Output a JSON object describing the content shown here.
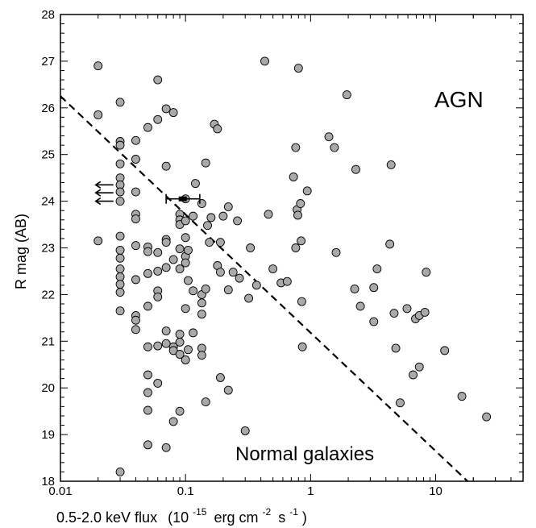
{
  "chart_data": {
    "type": "scatter",
    "title": "",
    "xlabel": "0.5-2.0 keV flux",
    "xlabel_units": "(10",
    "xlabel_units_sup": "-15",
    "xlabel_units_rest": "erg cm",
    "xlabel_units_sup2": "-2",
    "xlabel_units_rest2": "s",
    "xlabel_units_sup3": "-1",
    "xlabel_units_end": ")",
    "ylabel": "R mag  (AB)",
    "xscale": "log",
    "xlim": [
      0.01,
      50
    ],
    "ylim": [
      18,
      28
    ],
    "grid": false,
    "x_tick_labels": [
      "0.01",
      "0.1",
      "1",
      "10"
    ],
    "x_tick_values": [
      0.01,
      0.1,
      1,
      10
    ],
    "y_tick_labels": [
      "18",
      "19",
      "20",
      "21",
      "22",
      "23",
      "24",
      "25",
      "26",
      "27",
      "28"
    ],
    "y_tick_values": [
      18,
      19,
      20,
      21,
      22,
      23,
      24,
      25,
      26,
      27,
      28
    ],
    "annotations": {
      "upper_right": "AGN",
      "lower": "Normal galaxies"
    },
    "marker_color": "#a9a9a9",
    "marker_edge": "#000000",
    "dividing_line": {
      "style": "dashed",
      "points": [
        [
          0.01,
          26.25
        ],
        [
          18,
          18
        ]
      ]
    },
    "upper_limits": [
      {
        "x": 0.02,
        "y": 24.35
      },
      {
        "x": 0.02,
        "y": 24.18
      },
      {
        "x": 0.02,
        "y": 24.0
      }
    ],
    "errorbar_point": {
      "x": 0.095,
      "y": 24.05,
      "xlow": 0.07,
      "xhigh": 0.13
    },
    "points": [
      {
        "x": 0.02,
        "y": 26.9
      },
      {
        "x": 0.02,
        "y": 25.85
      },
      {
        "x": 0.02,
        "y": 23.15
      },
      {
        "x": 0.03,
        "y": 26.12
      },
      {
        "x": 0.03,
        "y": 25.28
      },
      {
        "x": 0.03,
        "y": 25.2
      },
      {
        "x": 0.03,
        "y": 24.8
      },
      {
        "x": 0.03,
        "y": 24.5
      },
      {
        "x": 0.03,
        "y": 24.35
      },
      {
        "x": 0.03,
        "y": 24.2
      },
      {
        "x": 0.03,
        "y": 24.0
      },
      {
        "x": 0.03,
        "y": 23.25
      },
      {
        "x": 0.03,
        "y": 22.95
      },
      {
        "x": 0.03,
        "y": 22.78
      },
      {
        "x": 0.03,
        "y": 22.55
      },
      {
        "x": 0.03,
        "y": 22.38
      },
      {
        "x": 0.03,
        "y": 22.22
      },
      {
        "x": 0.03,
        "y": 22.05
      },
      {
        "x": 0.03,
        "y": 21.65
      },
      {
        "x": 0.03,
        "y": 18.2
      },
      {
        "x": 0.04,
        "y": 25.3
      },
      {
        "x": 0.04,
        "y": 24.9
      },
      {
        "x": 0.04,
        "y": 24.2
      },
      {
        "x": 0.04,
        "y": 23.72
      },
      {
        "x": 0.04,
        "y": 23.62
      },
      {
        "x": 0.04,
        "y": 23.05
      },
      {
        "x": 0.04,
        "y": 22.32
      },
      {
        "x": 0.04,
        "y": 21.55
      },
      {
        "x": 0.04,
        "y": 21.45
      },
      {
        "x": 0.04,
        "y": 21.25
      },
      {
        "x": 0.05,
        "y": 25.58
      },
      {
        "x": 0.05,
        "y": 23.02
      },
      {
        "x": 0.05,
        "y": 22.92
      },
      {
        "x": 0.05,
        "y": 22.45
      },
      {
        "x": 0.05,
        "y": 21.75
      },
      {
        "x": 0.05,
        "y": 20.88
      },
      {
        "x": 0.05,
        "y": 20.28
      },
      {
        "x": 0.05,
        "y": 19.9
      },
      {
        "x": 0.05,
        "y": 19.52
      },
      {
        "x": 0.05,
        "y": 18.78
      },
      {
        "x": 0.06,
        "y": 26.6
      },
      {
        "x": 0.06,
        "y": 25.75
      },
      {
        "x": 0.06,
        "y": 22.9
      },
      {
        "x": 0.06,
        "y": 22.5
      },
      {
        "x": 0.06,
        "y": 22.08
      },
      {
        "x": 0.06,
        "y": 21.95
      },
      {
        "x": 0.06,
        "y": 20.9
      },
      {
        "x": 0.06,
        "y": 20.1
      },
      {
        "x": 0.07,
        "y": 25.98
      },
      {
        "x": 0.07,
        "y": 24.75
      },
      {
        "x": 0.07,
        "y": 23.18
      },
      {
        "x": 0.07,
        "y": 23.12
      },
      {
        "x": 0.07,
        "y": 22.58
      },
      {
        "x": 0.07,
        "y": 21.22
      },
      {
        "x": 0.07,
        "y": 20.95
      },
      {
        "x": 0.07,
        "y": 18.72
      },
      {
        "x": 0.08,
        "y": 25.9
      },
      {
        "x": 0.08,
        "y": 22.75
      },
      {
        "x": 0.08,
        "y": 20.88
      },
      {
        "x": 0.08,
        "y": 20.8
      },
      {
        "x": 0.08,
        "y": 19.28
      },
      {
        "x": 0.09,
        "y": 23.72
      },
      {
        "x": 0.09,
        "y": 23.6
      },
      {
        "x": 0.09,
        "y": 23.5
      },
      {
        "x": 0.09,
        "y": 22.98
      },
      {
        "x": 0.09,
        "y": 22.55
      },
      {
        "x": 0.09,
        "y": 21.15
      },
      {
        "x": 0.09,
        "y": 20.98
      },
      {
        "x": 0.09,
        "y": 20.72
      },
      {
        "x": 0.09,
        "y": 19.5
      },
      {
        "x": 0.1,
        "y": 24.05
      },
      {
        "x": 0.1,
        "y": 23.58
      },
      {
        "x": 0.1,
        "y": 23.22
      },
      {
        "x": 0.1,
        "y": 22.82
      },
      {
        "x": 0.1,
        "y": 22.68
      },
      {
        "x": 0.1,
        "y": 21.7
      },
      {
        "x": 0.1,
        "y": 20.6
      },
      {
        "x": 0.105,
        "y": 22.95
      },
      {
        "x": 0.105,
        "y": 22.3
      },
      {
        "x": 0.105,
        "y": 20.82
      },
      {
        "x": 0.115,
        "y": 23.68
      },
      {
        "x": 0.115,
        "y": 22.08
      },
      {
        "x": 0.115,
        "y": 21.18
      },
      {
        "x": 0.12,
        "y": 24.38
      },
      {
        "x": 0.135,
        "y": 23.95
      },
      {
        "x": 0.135,
        "y": 22.0
      },
      {
        "x": 0.135,
        "y": 21.82
      },
      {
        "x": 0.135,
        "y": 21.58
      },
      {
        "x": 0.135,
        "y": 20.85
      },
      {
        "x": 0.135,
        "y": 20.7
      },
      {
        "x": 0.145,
        "y": 24.82
      },
      {
        "x": 0.145,
        "y": 22.12
      },
      {
        "x": 0.145,
        "y": 19.7
      },
      {
        "x": 0.15,
        "y": 23.48
      },
      {
        "x": 0.155,
        "y": 23.12
      },
      {
        "x": 0.16,
        "y": 23.65
      },
      {
        "x": 0.17,
        "y": 25.65
      },
      {
        "x": 0.18,
        "y": 25.55
      },
      {
        "x": 0.18,
        "y": 22.62
      },
      {
        "x": 0.19,
        "y": 23.12
      },
      {
        "x": 0.19,
        "y": 22.48
      },
      {
        "x": 0.19,
        "y": 20.22
      },
      {
        "x": 0.2,
        "y": 23.68
      },
      {
        "x": 0.22,
        "y": 23.88
      },
      {
        "x": 0.22,
        "y": 22.1
      },
      {
        "x": 0.22,
        "y": 19.95
      },
      {
        "x": 0.24,
        "y": 22.48
      },
      {
        "x": 0.26,
        "y": 23.58
      },
      {
        "x": 0.27,
        "y": 22.35
      },
      {
        "x": 0.3,
        "y": 19.08
      },
      {
        "x": 0.32,
        "y": 21.92
      },
      {
        "x": 0.33,
        "y": 23.0
      },
      {
        "x": 0.37,
        "y": 22.2
      },
      {
        "x": 0.43,
        "y": 27.0
      },
      {
        "x": 0.46,
        "y": 23.72
      },
      {
        "x": 0.5,
        "y": 22.55
      },
      {
        "x": 0.58,
        "y": 22.25
      },
      {
        "x": 0.65,
        "y": 22.28
      },
      {
        "x": 0.73,
        "y": 24.52
      },
      {
        "x": 0.76,
        "y": 25.15
      },
      {
        "x": 0.76,
        "y": 23.0
      },
      {
        "x": 0.78,
        "y": 23.82
      },
      {
        "x": 0.79,
        "y": 23.7
      },
      {
        "x": 0.8,
        "y": 26.85
      },
      {
        "x": 0.83,
        "y": 23.95
      },
      {
        "x": 0.84,
        "y": 23.15
      },
      {
        "x": 0.85,
        "y": 21.85
      },
      {
        "x": 0.86,
        "y": 20.88
      },
      {
        "x": 0.94,
        "y": 24.22
      },
      {
        "x": 1.4,
        "y": 25.38
      },
      {
        "x": 1.55,
        "y": 25.15
      },
      {
        "x": 1.6,
        "y": 22.9
      },
      {
        "x": 1.95,
        "y": 26.28
      },
      {
        "x": 2.25,
        "y": 22.12
      },
      {
        "x": 2.3,
        "y": 24.68
      },
      {
        "x": 2.5,
        "y": 21.75
      },
      {
        "x": 3.2,
        "y": 22.15
      },
      {
        "x": 3.2,
        "y": 21.42
      },
      {
        "x": 3.4,
        "y": 22.55
      },
      {
        "x": 4.3,
        "y": 23.08
      },
      {
        "x": 4.4,
        "y": 24.78
      },
      {
        "x": 4.65,
        "y": 21.6
      },
      {
        "x": 4.8,
        "y": 20.85
      },
      {
        "x": 5.2,
        "y": 19.68
      },
      {
        "x": 5.9,
        "y": 21.7
      },
      {
        "x": 6.6,
        "y": 20.28
      },
      {
        "x": 6.9,
        "y": 21.48
      },
      {
        "x": 7.4,
        "y": 21.55
      },
      {
        "x": 7.4,
        "y": 20.45
      },
      {
        "x": 8.2,
        "y": 21.62
      },
      {
        "x": 8.4,
        "y": 22.48
      },
      {
        "x": 11.8,
        "y": 20.8
      },
      {
        "x": 16.2,
        "y": 19.82
      },
      {
        "x": 25.5,
        "y": 19.38
      }
    ]
  }
}
